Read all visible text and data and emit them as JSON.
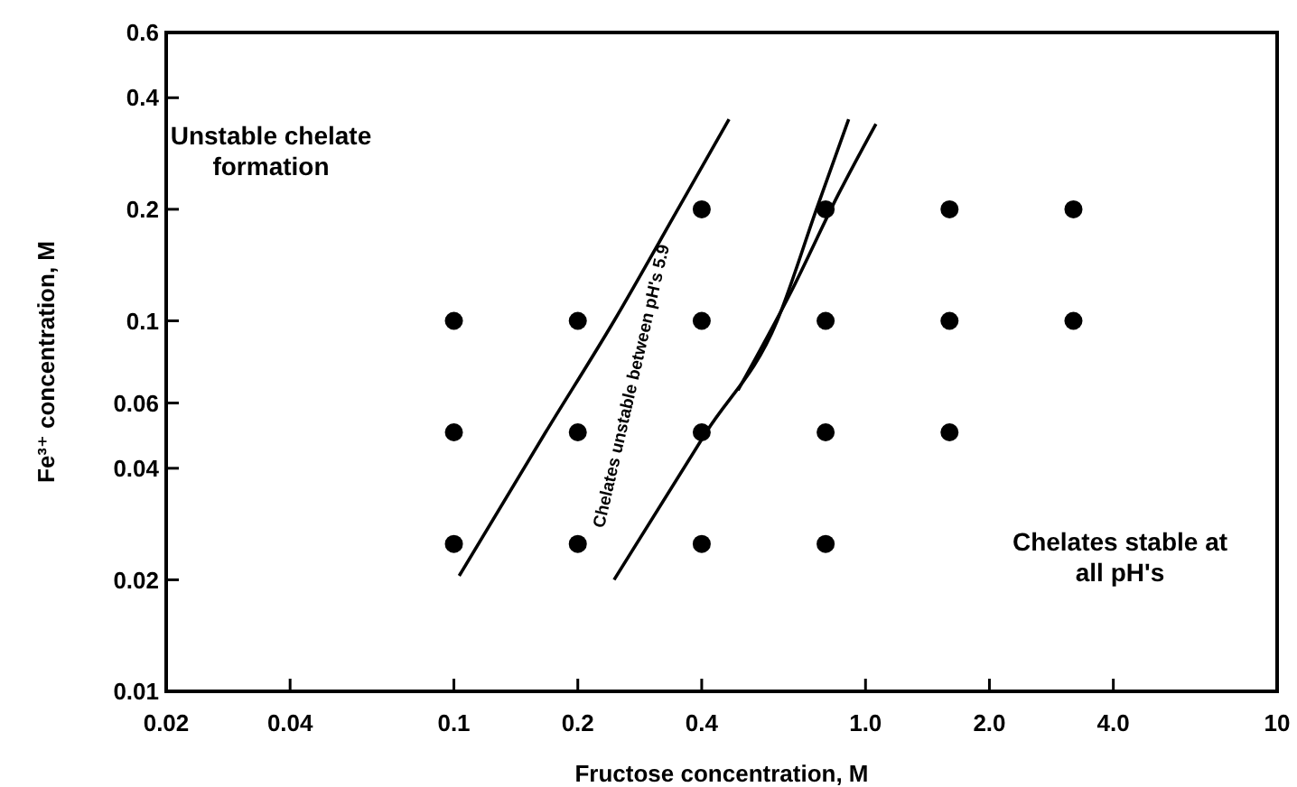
{
  "chart_data": {
    "type": "scatter",
    "xlabel": "Fructose concentration, M",
    "ylabel": "Fe³⁺ concentration, M",
    "log": "xy",
    "grid": false,
    "xlim": [
      0.02,
      10
    ],
    "ylim": [
      0.01,
      0.6
    ],
    "xticks": [
      0.02,
      0.04,
      0.1,
      0.2,
      0.4,
      {
        "value": 1,
        "label": "1.0"
      },
      {
        "value": 2,
        "label": "2.0"
      },
      {
        "value": 4,
        "label": "4.0"
      },
      10
    ],
    "yticks": [
      0.01,
      0.02,
      0.04,
      0.06,
      0.1,
      0.2,
      0.4,
      0.6
    ],
    "series": [
      {
        "type": "scatter",
        "marker": "circle",
        "color": "#000000",
        "x": [
          0.1,
          0.1,
          0.1,
          0.2,
          0.2,
          0.2,
          0.4,
          0.4,
          0.4,
          0.4,
          0.8,
          0.8,
          0.8,
          0.8,
          1.6,
          1.6,
          1.6,
          3.2,
          3.2
        ],
        "values": [
          0.1,
          0.05,
          0.025,
          0.1,
          0.05,
          0.025,
          0.2,
          0.1,
          0.05,
          0.025,
          0.2,
          0.1,
          0.05,
          0.025,
          0.2,
          0.1,
          0.05,
          0.2,
          0.1
        ]
      },
      {
        "type": "line",
        "color": "#000000",
        "marker": "none",
        "line_style": "solid",
        "x": [
          0.103,
          0.167,
          0.245,
          0.35,
          0.466
        ],
        "values": [
          0.0205,
          0.05,
          0.1,
          0.2,
          0.35
        ]
      },
      {
        "type": "line",
        "color": "#000000",
        "marker": "none",
        "line_style": "solid",
        "x": [
          0.245,
          0.41,
          0.61,
          0.76,
          0.91
        ],
        "values": [
          0.02,
          0.05,
          0.1,
          0.2,
          0.35
        ]
      },
      {
        "type": "line",
        "color": "#000000",
        "marker": "none",
        "line_style": "solid",
        "x": [
          0.49,
          0.66,
          0.86,
          1.06
        ],
        "values": [
          0.065,
          0.12,
          0.22,
          0.34
        ]
      }
    ],
    "annotations": [
      "Unstable chelate formation",
      "Chelates stable at all pH's",
      "Chelates unstable between pH's 5.9"
    ]
  }
}
